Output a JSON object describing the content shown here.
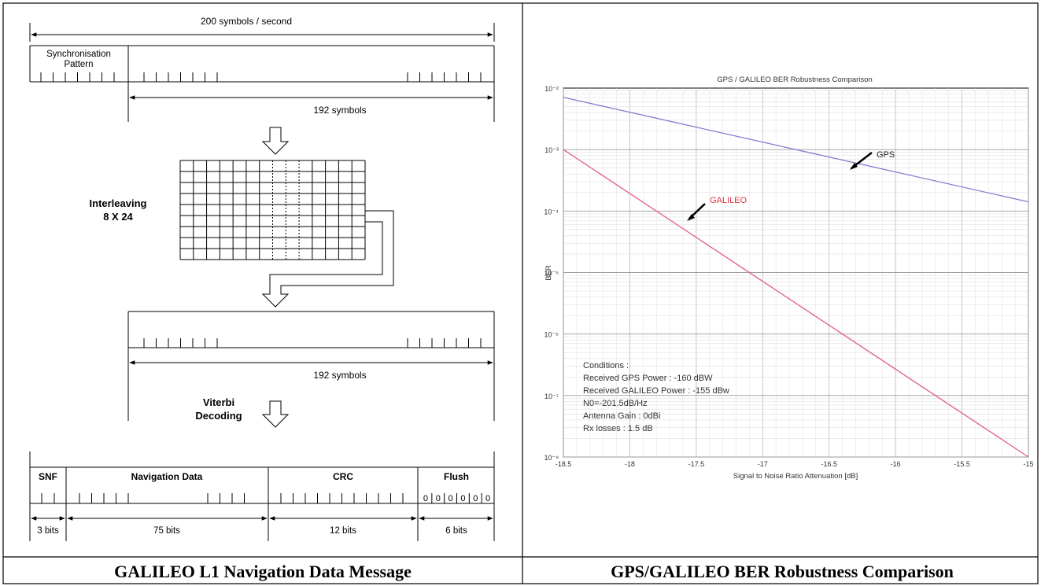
{
  "left_panel": {
    "caption": "GALILEO L1 Navigation Data Message",
    "rate_label": "200 symbols / second",
    "sync_label_line1": "Synchronisation",
    "sync_label_line2": "Pattern",
    "symbols_label_1": "192 symbols",
    "interleaving_line1": "Interleaving",
    "interleaving_line2": "8 X 24",
    "symbols_label_2": "192 symbols",
    "viterbi_line1": "Viterbi",
    "viterbi_line2": "Decoding",
    "fields": [
      {
        "name": "SNF",
        "bits": "3 bits"
      },
      {
        "name": "Navigation Data",
        "bits": "75 bits"
      },
      {
        "name": "CRC",
        "bits": "12 bits"
      },
      {
        "name": "Flush",
        "bits": "6 bits"
      }
    ],
    "flush_zeros": [
      "0",
      "0",
      "0",
      "0",
      "0",
      "0"
    ]
  },
  "right_panel": {
    "caption": "GPS/GALILEO BER Robustness Comparison",
    "chart_data": {
      "type": "line",
      "title": "GPS / GALILEO BER Robustness Comparison",
      "xlabel": "Signal to Noise Ratio Attenuation [dB]",
      "ylabel": "BER",
      "x_ticks": [
        "-18.5",
        "-18",
        "-17.5",
        "-17",
        "-16.5",
        "-16",
        "-15.5",
        "-15"
      ],
      "y_ticks": [
        "10⁻²",
        "10⁻³",
        "10⁻⁴",
        "10⁻⁵",
        "10⁻⁶",
        "10⁻⁷",
        "10⁻⁸"
      ],
      "y_scale": "log",
      "xlim": [
        -18.5,
        -15
      ],
      "ylim_exp": [
        -8,
        -2
      ],
      "grid": true,
      "series": [
        {
          "name": "GPS",
          "color": "#8080d0",
          "x": [
            -18.5,
            -15
          ],
          "y_exp": [
            -2.15,
            -3.85
          ]
        },
        {
          "name": "GALILEO",
          "color": "#e06080",
          "x": [
            -18.5,
            -15
          ],
          "y_exp": [
            -3.0,
            -8.0
          ]
        }
      ],
      "conditions": [
        "Conditions :",
        "Received GPS Power : -160 dBW",
        "Received GALILEO Power : -155 dBw",
        "N0=-201.5dB/Hz",
        "Antenna Gain : 0dBi",
        "Rx losses : 1.5 dB"
      ]
    }
  }
}
